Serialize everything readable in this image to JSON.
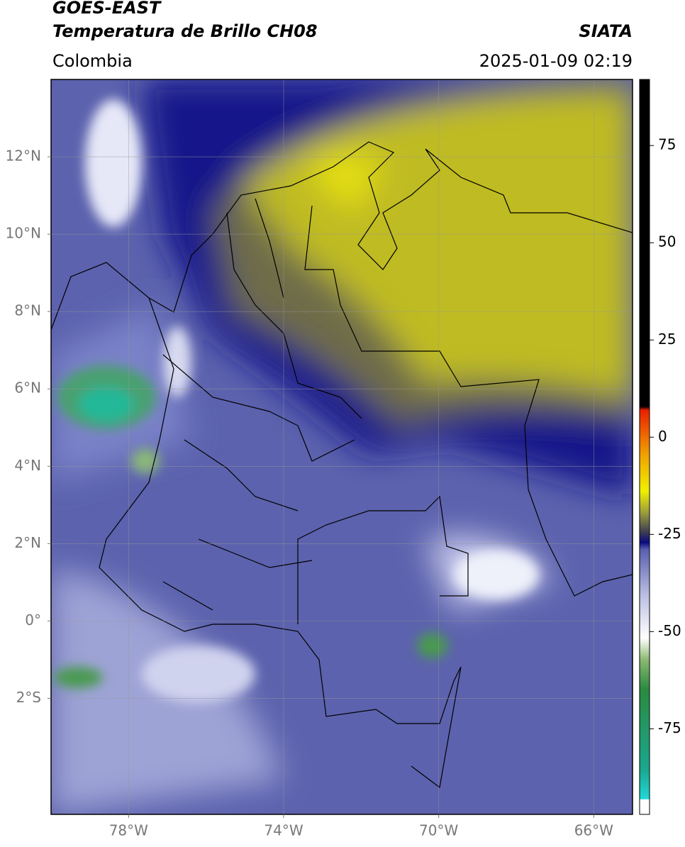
{
  "header": {
    "title": "GOES-EAST",
    "subtitle": "Temperatura de Brillo CH08",
    "source": "SIATA",
    "region": "Colombia",
    "datetime": "2025-01-09 02:19"
  },
  "map": {
    "lonlim": [
      -80,
      -65
    ],
    "latlim": [
      -5,
      14
    ],
    "lon_ticks": [
      {
        "value": -78,
        "label": "78°W"
      },
      {
        "value": -74,
        "label": "74°W"
      },
      {
        "value": -70,
        "label": "70°W"
      },
      {
        "value": -66,
        "label": "66°W"
      }
    ],
    "lat_ticks": [
      {
        "value": 12,
        "label": "12°N"
      },
      {
        "value": 10,
        "label": "10°N"
      },
      {
        "value": 8,
        "label": "8°N"
      },
      {
        "value": 6,
        "label": "6°N"
      },
      {
        "value": 4,
        "label": "4°N"
      },
      {
        "value": 2,
        "label": "2°N"
      },
      {
        "value": 0,
        "label": "0°"
      },
      {
        "value": -2,
        "label": "2°S"
      }
    ],
    "grid": true
  },
  "colorbar": {
    "clim": [
      -97,
      92
    ],
    "ticks": [
      75,
      50,
      25,
      0,
      -25,
      -50,
      -75
    ]
  }
}
